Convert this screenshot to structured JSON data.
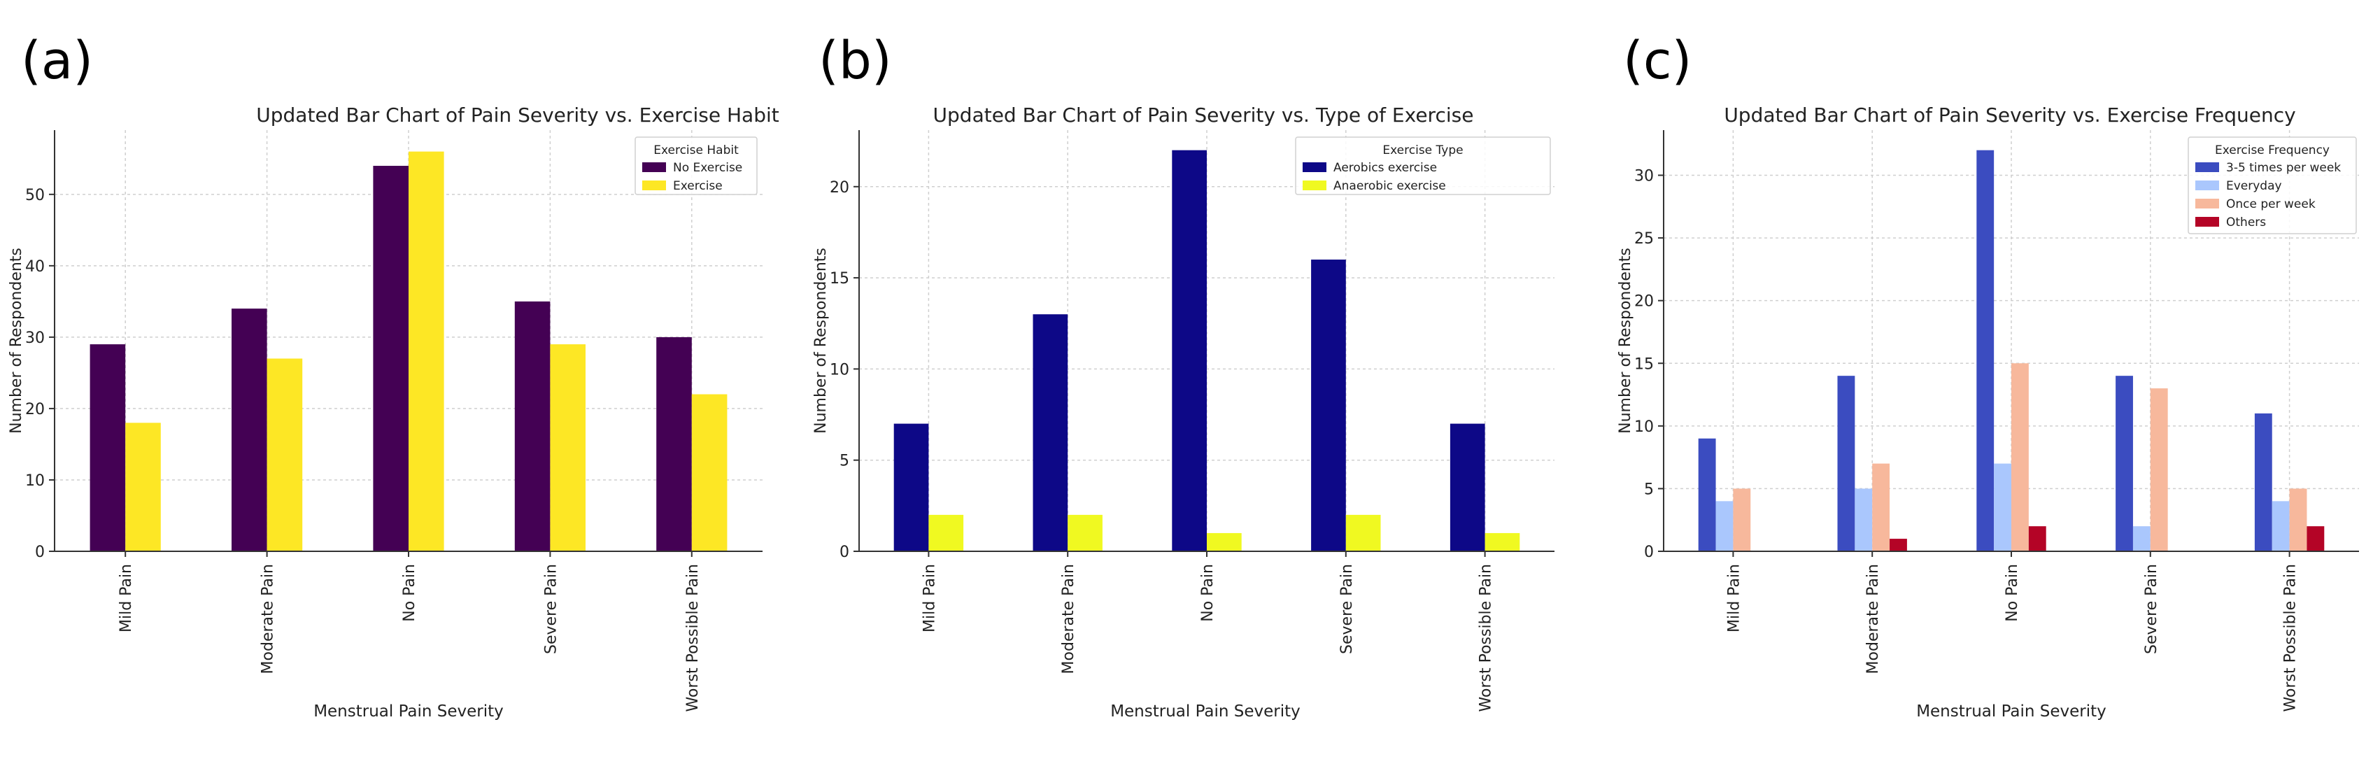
{
  "chart_data": [
    {
      "panel_label": "(a)",
      "type": "bar",
      "title": "Updated Bar Chart of Pain Severity vs. Exercise Habit",
      "xlabel": "Menstrual Pain Severity",
      "ylabel": "Number of Respondents",
      "categories": [
        "Mild Pain",
        "Moderate Pain",
        "No Pain",
        "Severe Pain",
        "Worst Possible Pain"
      ],
      "ylim": [
        0,
        59
      ],
      "yticks": [
        0,
        10,
        20,
        30,
        40,
        50
      ],
      "grid": true,
      "legend": {
        "title": "Exercise Habit",
        "position": "top-right"
      },
      "series": [
        {
          "name": "No Exercise",
          "color": "#440154",
          "values": [
            29,
            34,
            54,
            35,
            30
          ]
        },
        {
          "name": "Exercise",
          "color": "#fde725",
          "values": [
            18,
            27,
            56,
            29,
            22
          ]
        }
      ]
    },
    {
      "panel_label": "(b)",
      "type": "bar",
      "title": "Updated Bar Chart of Pain Severity vs. Type of Exercise",
      "xlabel": "Menstrual Pain Severity",
      "ylabel": "Number of Respondents",
      "categories": [
        "Mild Pain",
        "Moderate Pain",
        "No Pain",
        "Severe Pain",
        "Worst Possible Pain"
      ],
      "ylim": [
        0,
        23.1
      ],
      "yticks": [
        0,
        5,
        10,
        15,
        20
      ],
      "grid": true,
      "legend": {
        "title": "Exercise Type",
        "position": "top-right"
      },
      "series": [
        {
          "name": "Aerobics exercise",
          "color": "#0d0887",
          "values": [
            7,
            13,
            22,
            16,
            7
          ]
        },
        {
          "name": "Anaerobic exercise",
          "color": "#f0f921",
          "values": [
            2,
            2,
            1,
            2,
            1
          ]
        }
      ]
    },
    {
      "panel_label": "(c)",
      "type": "bar",
      "title": "Updated Bar Chart of Pain Severity vs. Exercise Frequency",
      "xlabel": "Menstrual Pain Severity",
      "ylabel": "Number of Respondents",
      "categories": [
        "Mild Pain",
        "Moderate Pain",
        "No Pain",
        "Severe Pain",
        "Worst Possible Pain"
      ],
      "ylim": [
        0,
        33.6
      ],
      "yticks": [
        0,
        5,
        10,
        15,
        20,
        25,
        30
      ],
      "grid": true,
      "legend": {
        "title": "Exercise Frequency",
        "position": "top-right"
      },
      "series": [
        {
          "name": "3-5 times per week",
          "color": "#3b4cc0",
          "values": [
            9,
            14,
            32,
            14,
            11
          ]
        },
        {
          "name": "Everyday",
          "color": "#aac7fd",
          "values": [
            4,
            5,
            7,
            2,
            4
          ]
        },
        {
          "name": "Once per week",
          "color": "#f7b89c",
          "values": [
            5,
            7,
            15,
            13,
            5
          ]
        },
        {
          "name": "Others",
          "color": "#b40426",
          "values": [
            0,
            1,
            2,
            0,
            2
          ]
        }
      ]
    }
  ]
}
